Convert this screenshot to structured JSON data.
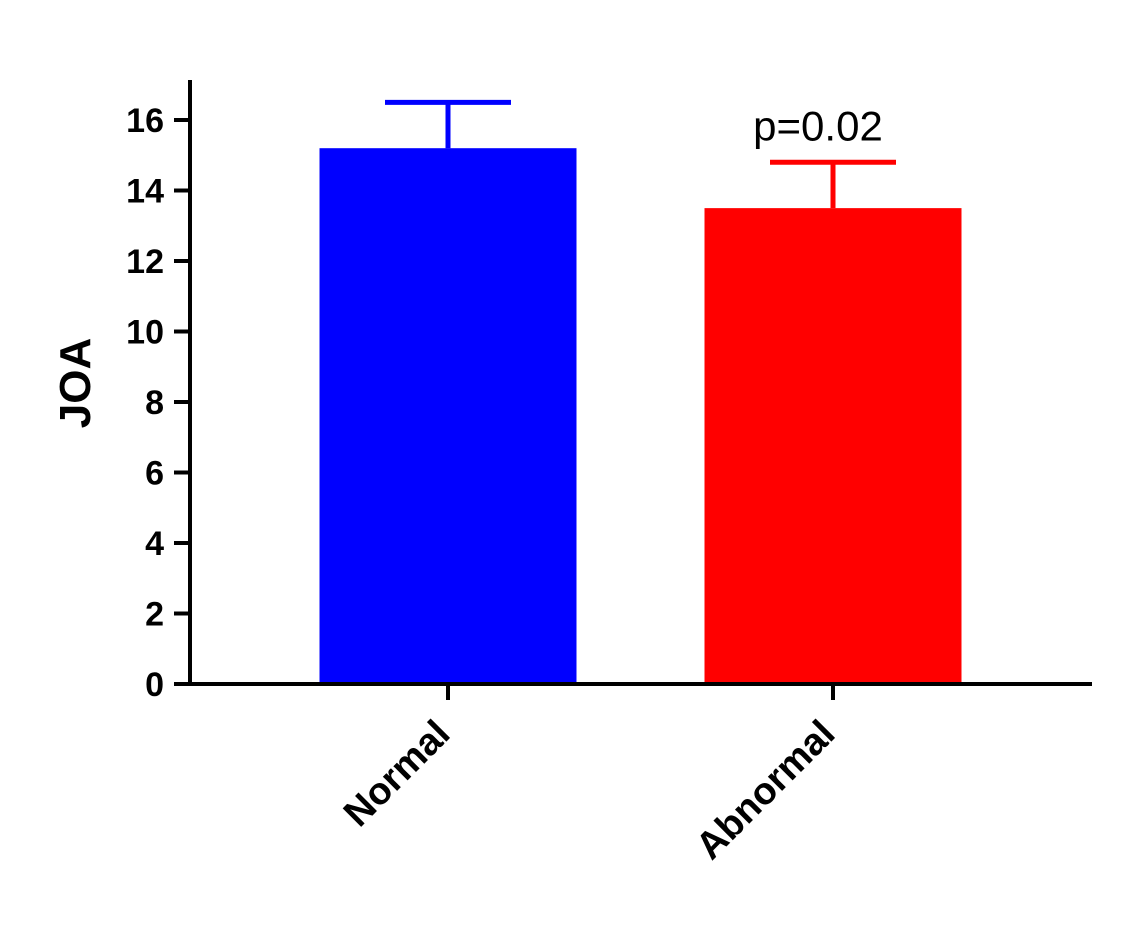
{
  "chart_data": {
    "type": "bar",
    "categories": [
      "Normal",
      "Abnormal"
    ],
    "values": [
      15.2,
      13.5
    ],
    "errors": [
      1.3,
      1.3
    ],
    "colors": [
      "#0000ff",
      "#ff0000"
    ],
    "xlabel": "",
    "ylabel": "JOA",
    "ylim": [
      0,
      17
    ],
    "yticks": [
      0,
      2,
      4,
      6,
      8,
      10,
      12,
      14,
      16
    ],
    "grid": false,
    "annotations": [
      {
        "text": "p=0.02",
        "category": "Abnormal"
      }
    ]
  }
}
